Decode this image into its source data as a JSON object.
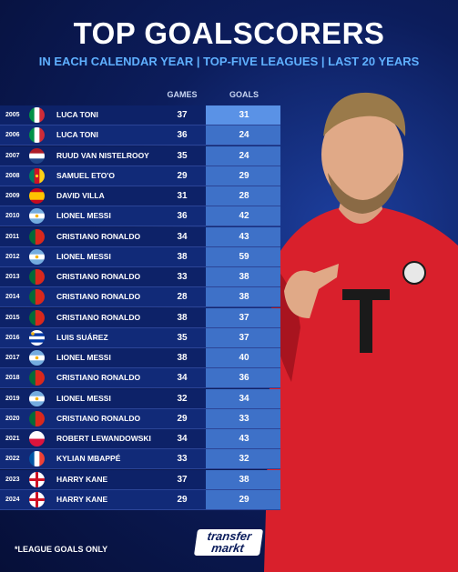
{
  "header": {
    "title": "TOP GOALSCORERS",
    "subtitle": "IN EACH CALENDAR YEAR | TOP-FIVE LEAGUES | LAST 20 YEARS"
  },
  "table": {
    "columns": [
      "GAMES",
      "GOALS"
    ],
    "rows": [
      [
        "2005",
        "LUCA TONI",
        37,
        31
      ],
      [
        "2006",
        "LUCA TONI",
        36,
        24
      ],
      [
        "2007",
        "RUUD VAN NISTELROOY",
        35,
        24
      ],
      [
        "2008",
        "SAMUEL ETO'O",
        29,
        29
      ],
      [
        "2009",
        "DAVID VILLA",
        31,
        28
      ],
      [
        "2010",
        "LIONEL MESSI",
        36,
        42
      ],
      [
        "2011",
        "CRISTIANO RONALDO",
        34,
        43
      ],
      [
        "2012",
        "LIONEL MESSI",
        38,
        59
      ],
      [
        "2013",
        "CRISTIANO RONALDO",
        33,
        38
      ],
      [
        "2014",
        "CRISTIANO RONALDO",
        28,
        38
      ],
      [
        "2015",
        "CRISTIANO RONALDO",
        38,
        37
      ],
      [
        "2016",
        "LUIS SUÁREZ",
        35,
        37
      ],
      [
        "2017",
        "LIONEL MESSI",
        38,
        40
      ],
      [
        "2018",
        "CRISTIANO RONALDO",
        34,
        36
      ],
      [
        "2019",
        "LIONEL MESSI",
        32,
        34
      ],
      [
        "2020",
        "CRISTIANO RONALDO",
        29,
        33
      ],
      [
        "2021",
        "ROBERT LEWANDOWSKI",
        34,
        43
      ],
      [
        "2022",
        "KYLIAN MBAPPÉ",
        33,
        32
      ],
      [
        "2023",
        "HARRY KANE",
        37,
        38
      ],
      [
        "2024",
        "HARRY KANE",
        29,
        29
      ]
    ]
  },
  "footer": {
    "note": "*LEAGUE GOALS ONLY",
    "logo": [
      "transfer",
      "markt"
    ]
  }
}
